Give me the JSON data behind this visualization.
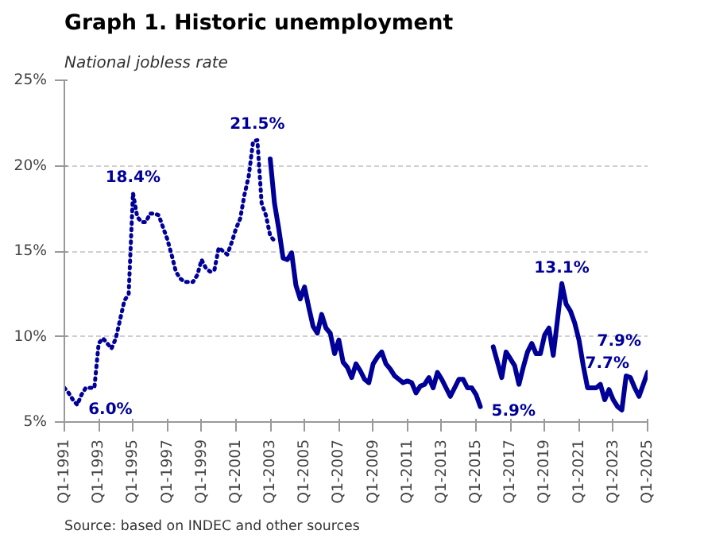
{
  "chart_data": {
    "type": "line",
    "title": "Graph 1. Historic unemployment",
    "subtitle": "National jobless rate",
    "categories": [
      "Q1-1991",
      null,
      null,
      null,
      null,
      null,
      null,
      null,
      "Q1-1993",
      null,
      null,
      null,
      null,
      null,
      null,
      null,
      "Q1-1995",
      null,
      null,
      null,
      null,
      null,
      null,
      null,
      "Q1-1997",
      null,
      null,
      null,
      null,
      null,
      null,
      null,
      "Q1-1999",
      null,
      null,
      null,
      null,
      null,
      null,
      null,
      "Q1-2001",
      null,
      null,
      null,
      null,
      null,
      null,
      null,
      "Q1-2003",
      null,
      null,
      null,
      null,
      null,
      null,
      null,
      "Q1-2005",
      null,
      null,
      null,
      null,
      null,
      null,
      null,
      "Q1-2007",
      null,
      null,
      null,
      null,
      null,
      null,
      null,
      "Q1-2009",
      null,
      null,
      null,
      null,
      null,
      null,
      null,
      "Q1-2011",
      null,
      null,
      null,
      null,
      null,
      null,
      null,
      "Q1-2013",
      null,
      null,
      null,
      null,
      null,
      null,
      null,
      "Q1-2015",
      null,
      null,
      null,
      null,
      null,
      null,
      null,
      "Q1-2017",
      null,
      null,
      null,
      null,
      null,
      null,
      null,
      "Q1-2019",
      null,
      null,
      null,
      null,
      null,
      null,
      null,
      "Q1-2021",
      null,
      null,
      null,
      null,
      null,
      null,
      null,
      "Q1-2023",
      null,
      null,
      null,
      null,
      null,
      null,
      null,
      "Q1-2025"
    ],
    "ylim": [
      5,
      25
    ],
    "yticks": [
      {
        "value": 5,
        "label": "5%"
      },
      {
        "value": 10,
        "label": "10%"
      },
      {
        "value": 15,
        "label": "15%"
      },
      {
        "value": 20,
        "label": "20%"
      },
      {
        "value": 25,
        "label": "25%"
      }
    ],
    "grid": "y",
    "series": [
      {
        "color": "#000099",
        "line_style": "dotted",
        "values": [
          7.0,
          6.7,
          6.3,
          6.0,
          6.6,
          7.0,
          7.0,
          7.0,
          9.6,
          9.9,
          9.6,
          9.3,
          9.9,
          11.0,
          12.1,
          12.5,
          18.4,
          17.0,
          16.7,
          16.7,
          17.2,
          17.2,
          17.1,
          16.4,
          15.7,
          14.8,
          13.8,
          13.4,
          13.2,
          13.2,
          13.2,
          13.6,
          14.5,
          14.0,
          13.8,
          13.9,
          15.2,
          15.0,
          14.8,
          15.5,
          16.3,
          16.9,
          18.3,
          19.4,
          21.4,
          21.5,
          17.8,
          17.1,
          15.9,
          15.6,
          null,
          null,
          null,
          null,
          null,
          null,
          null,
          null,
          null,
          null,
          null,
          null,
          null,
          null,
          null,
          null,
          null,
          null,
          null,
          null,
          null,
          null,
          null,
          null,
          null,
          null,
          null,
          null,
          null,
          null,
          null,
          null,
          null,
          null,
          null,
          null,
          null,
          null,
          null,
          null,
          null,
          null,
          null,
          null,
          null,
          null,
          null,
          null,
          null,
          null,
          null,
          null,
          null,
          null,
          null,
          null,
          null,
          null,
          null,
          null,
          null,
          null,
          null,
          null,
          null,
          null,
          null,
          null,
          null,
          null,
          null,
          null,
          null,
          null,
          null,
          null,
          null,
          null,
          null,
          null,
          null,
          null,
          null,
          null,
          null,
          null,
          null
        ],
        "value_labels": [
          null,
          null,
          null,
          "6.0%",
          null,
          null,
          null,
          null,
          null,
          null,
          null,
          null,
          null,
          null,
          null,
          null,
          "18.4%",
          null,
          null,
          null,
          null,
          null,
          null,
          null,
          null,
          null,
          null,
          null,
          null,
          null,
          null,
          null,
          null,
          null,
          null,
          null,
          null,
          null,
          null,
          null,
          null,
          null,
          null,
          null,
          null,
          "21.5%",
          null,
          null,
          null,
          null,
          null,
          null,
          null,
          null,
          null,
          null,
          null,
          null,
          null,
          null,
          null,
          null,
          null,
          null,
          null,
          null,
          null,
          null,
          null,
          null,
          null,
          null,
          null,
          null,
          null,
          null,
          null,
          null,
          null,
          null,
          null,
          null,
          null,
          null,
          null,
          null,
          null,
          null,
          null,
          null,
          null,
          null,
          null,
          null,
          null,
          null,
          null,
          null,
          null,
          null,
          null,
          null,
          null,
          null,
          null,
          null,
          null,
          null,
          null,
          null,
          null,
          null,
          null,
          null,
          null,
          null,
          null,
          null,
          null,
          null,
          null,
          null,
          null,
          null,
          null,
          null,
          null,
          null,
          null,
          null,
          null,
          null,
          null,
          null,
          null,
          null,
          null
        ]
      },
      {
        "color": "#000099",
        "line_style": "solid",
        "values": [
          null,
          null,
          null,
          null,
          null,
          null,
          null,
          null,
          null,
          null,
          null,
          null,
          null,
          null,
          null,
          null,
          null,
          null,
          null,
          null,
          null,
          null,
          null,
          null,
          null,
          null,
          null,
          null,
          null,
          null,
          null,
          null,
          null,
          null,
          null,
          null,
          null,
          null,
          null,
          null,
          null,
          null,
          null,
          null,
          null,
          null,
          null,
          null,
          20.4,
          17.8,
          16.3,
          14.6,
          14.5,
          14.9,
          13.0,
          12.2,
          12.9,
          11.7,
          10.6,
          10.2,
          11.3,
          10.5,
          10.2,
          9.0,
          9.8,
          8.5,
          8.2,
          7.6,
          8.4,
          8.0,
          7.5,
          7.3,
          8.4,
          8.8,
          9.1,
          8.4,
          8.1,
          7.7,
          7.5,
          7.3,
          7.4,
          7.3,
          6.7,
          7.1,
          7.2,
          7.6,
          7.0,
          7.9,
          7.5,
          7.0,
          6.5,
          7.0,
          7.5,
          7.5,
          7.0,
          7.0,
          6.6,
          5.9,
          null,
          null,
          9.4,
          8.5,
          7.6,
          9.1,
          8.7,
          8.3,
          7.2,
          8.2,
          9.1,
          9.6,
          9.0,
          9.0,
          10.1,
          10.5,
          8.9,
          11.0,
          13.1,
          11.9,
          11.5,
          10.8,
          9.8,
          8.3,
          7.0,
          7.0,
          7.0,
          7.2,
          6.3,
          6.9,
          6.3,
          5.9,
          5.7,
          7.7,
          7.6,
          7.0,
          6.5,
          7.2,
          7.9
        ],
        "value_labels": [
          null,
          null,
          null,
          null,
          null,
          null,
          null,
          null,
          null,
          null,
          null,
          null,
          null,
          null,
          null,
          null,
          null,
          null,
          null,
          null,
          null,
          null,
          null,
          null,
          null,
          null,
          null,
          null,
          null,
          null,
          null,
          null,
          null,
          null,
          null,
          null,
          null,
          null,
          null,
          null,
          null,
          null,
          null,
          null,
          null,
          null,
          null,
          null,
          null,
          null,
          null,
          null,
          null,
          null,
          null,
          null,
          null,
          null,
          null,
          null,
          null,
          null,
          null,
          null,
          null,
          null,
          null,
          null,
          null,
          null,
          null,
          null,
          null,
          null,
          null,
          null,
          null,
          null,
          null,
          null,
          null,
          null,
          null,
          null,
          null,
          null,
          null,
          null,
          null,
          null,
          null,
          null,
          null,
          null,
          null,
          null,
          null,
          "5.9%",
          null,
          null,
          null,
          null,
          null,
          null,
          null,
          null,
          null,
          null,
          null,
          null,
          null,
          null,
          null,
          null,
          null,
          null,
          "13.1%",
          null,
          null,
          null,
          null,
          null,
          null,
          null,
          null,
          null,
          null,
          null,
          null,
          null,
          null,
          "7.7%",
          null,
          null,
          null,
          null,
          "7.9%"
        ]
      }
    ],
    "annotations": [
      "Source: based on INDEC and other sources"
    ]
  }
}
